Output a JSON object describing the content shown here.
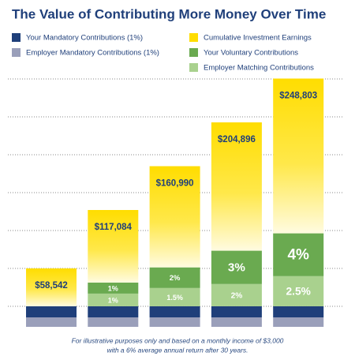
{
  "chart_data": {
    "type": "stacked_bar",
    "title": "The Value of Contributing More Money Over Time",
    "categories": [
      null,
      null,
      null,
      null,
      null
    ],
    "series": [
      {
        "name": "Your Mandatory Contributions (1%)",
        "color": "#1f3f7a",
        "values": [
          11100,
          11100,
          11100,
          11100,
          11100
        ]
      },
      {
        "name": "Employer Mandatory Contributions (1%)",
        "color": "#9a9fba",
        "values": [
          9500,
          9500,
          9500,
          9500,
          9500
        ]
      },
      {
        "name": "Cumulative Investment Earnings",
        "color": "#ffdd00",
        "values": [
          37942,
          72684,
          101390,
          128596,
          155103
        ]
      },
      {
        "name": "Your Voluntary Contributions",
        "color": "#6aaa50",
        "values": [
          0,
          11100,
          20700,
          33400,
          42900
        ],
        "labels": [
          null,
          "1%",
          "2%",
          "3%",
          "4%"
        ]
      },
      {
        "name": "Employer Matching Contributions",
        "color": "#a9d18e",
        "values": [
          0,
          12700,
          18300,
          22300,
          30200
        ],
        "labels": [
          null,
          "1%",
          "1.5%",
          "2%",
          "2.5%"
        ]
      }
    ],
    "totals": {
      "values": [
        58542,
        117084,
        160990,
        204896,
        248803
      ],
      "value_labels": [
        "$58,542",
        "$117,084",
        "$160,990",
        "$204,896",
        "$248,803"
      ]
    },
    "ylim": [
      0,
      250000
    ],
    "grid": true,
    "footnote": [
      "For illustrative purposes only and based on a monthly income of $3,000",
      "with a 6% average annual return after 30 years."
    ]
  }
}
